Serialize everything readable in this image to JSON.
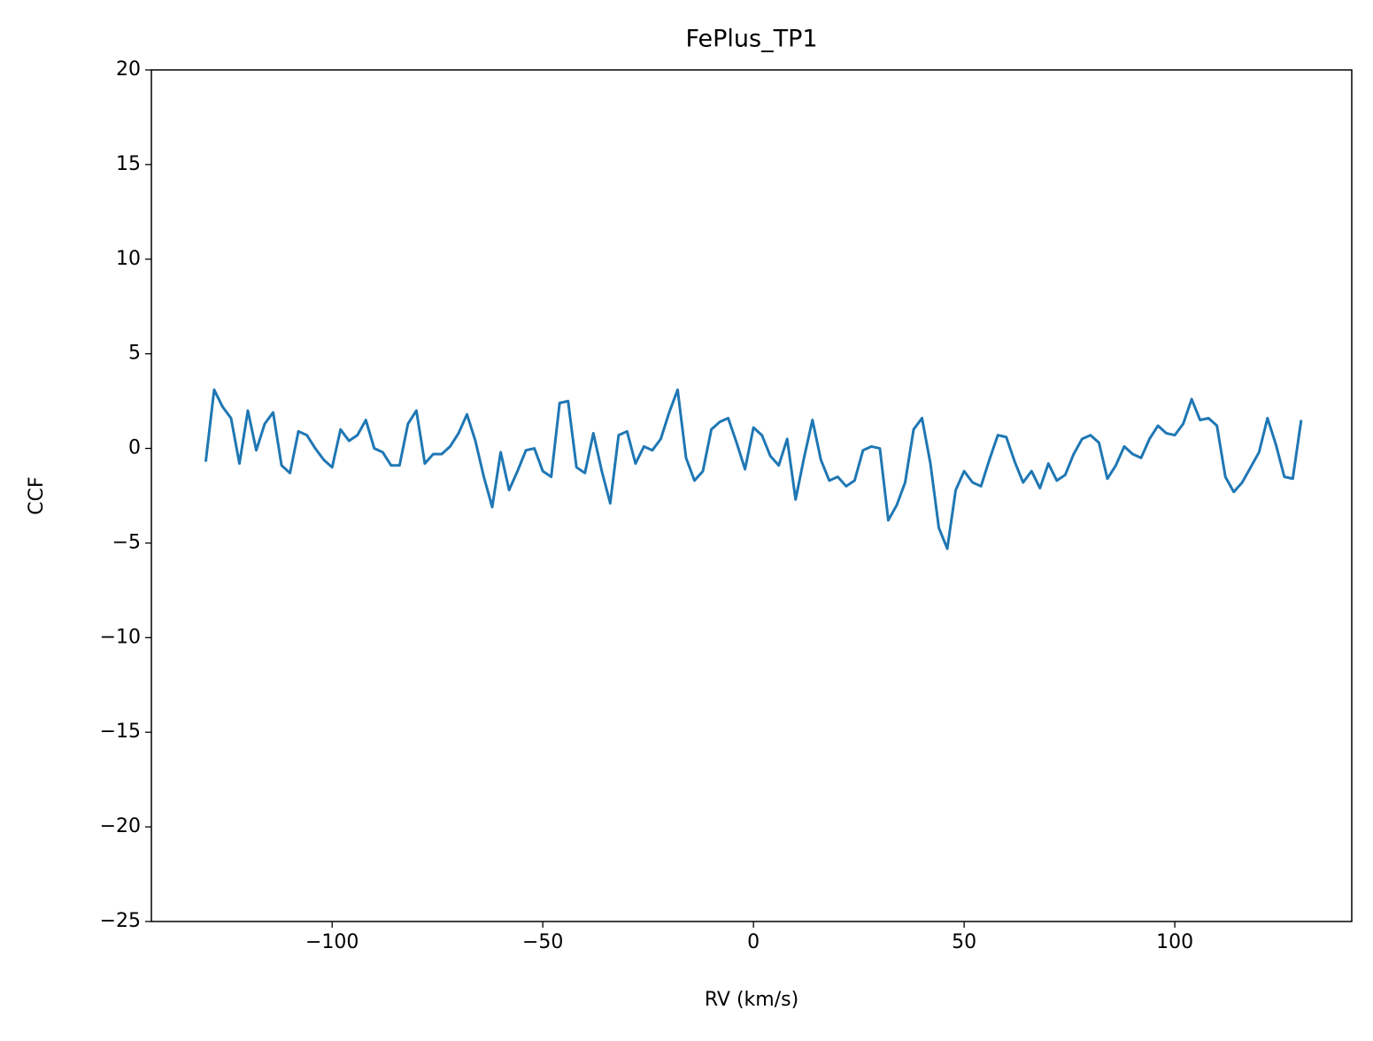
{
  "chart_data": {
    "type": "line",
    "title": "FePlus_TP1",
    "xlabel": "RV (km/s)",
    "ylabel": "CCF",
    "color": "#1f77b4",
    "x": [
      -130,
      -128,
      -126,
      -124,
      -122,
      -120,
      -118,
      -116,
      -114,
      -112,
      -110,
      -108,
      -106,
      -104,
      -102,
      -100,
      -98,
      -96,
      -94,
      -92,
      -90,
      -88,
      -86,
      -84,
      -82,
      -80,
      -78,
      -76,
      -74,
      -72,
      -70,
      -68,
      -66,
      -64,
      -62,
      -60,
      -58,
      -56,
      -54,
      -52,
      -50,
      -48,
      -46,
      -44,
      -42,
      -40,
      -38,
      -36,
      -34,
      -32,
      -30,
      -28,
      -26,
      -24,
      -22,
      -20,
      -18,
      -16,
      -14,
      -12,
      -10,
      -8,
      -6,
      -4,
      -2,
      0,
      2,
      4,
      6,
      8,
      10,
      12,
      14,
      16,
      18,
      20,
      22,
      24,
      26,
      28,
      30,
      32,
      34,
      36,
      38,
      40,
      42,
      44,
      46,
      48,
      50,
      52,
      54,
      56,
      58,
      60,
      62,
      64,
      66,
      68,
      70,
      72,
      74,
      76,
      78,
      80,
      82,
      84,
      86,
      88,
      90,
      92,
      94,
      96,
      98,
      100,
      102,
      104,
      106,
      108,
      110,
      112,
      114,
      116,
      118,
      120,
      122,
      124,
      126,
      128,
      130
    ],
    "values": [
      -0.7,
      3.1,
      2.2,
      1.6,
      -0.8,
      2.0,
      -0.1,
      1.3,
      1.9,
      -0.9,
      -1.3,
      0.9,
      0.7,
      0.0,
      -0.6,
      -1.0,
      1.0,
      0.4,
      0.7,
      1.5,
      0.0,
      -0.2,
      -0.9,
      -0.9,
      1.3,
      2.0,
      -0.8,
      -0.3,
      -0.3,
      0.1,
      0.8,
      1.8,
      0.4,
      -1.5,
      -3.1,
      -0.2,
      -2.2,
      -1.2,
      -0.1,
      0.0,
      -1.2,
      -1.5,
      2.4,
      2.5,
      -1.0,
      -1.3,
      0.8,
      -1.2,
      -2.9,
      0.7,
      0.9,
      -0.8,
      0.1,
      -0.1,
      0.5,
      1.9,
      3.1,
      -0.5,
      -1.7,
      -1.2,
      1.0,
      1.4,
      1.6,
      0.3,
      -1.1,
      1.1,
      0.7,
      -0.4,
      -0.9,
      0.5,
      -2.7,
      -0.5,
      1.5,
      -0.6,
      -1.7,
      -1.5,
      -2.0,
      -1.7,
      -0.1,
      0.1,
      0.0,
      -3.8,
      -3.0,
      -1.8,
      1.0,
      1.6,
      -0.8,
      -4.2,
      -5.3,
      -2.2,
      -1.2,
      -1.8,
      -2.0,
      -0.6,
      0.7,
      0.6,
      -0.7,
      -1.8,
      -1.2,
      -2.1,
      -0.8,
      -1.7,
      -1.4,
      -0.3,
      0.5,
      0.7,
      0.3,
      -1.6,
      -0.9,
      0.1,
      -0.3,
      -0.5,
      0.5,
      1.2,
      0.8,
      0.7,
      1.3,
      2.6,
      1.5,
      1.6,
      1.2,
      -1.5,
      -2.3,
      -1.8,
      -1.0,
      -0.2,
      1.6,
      0.2,
      -1.5,
      -1.6,
      1.5
    ],
    "xlim": [
      -142.9,
      142.0
    ],
    "ylim": [
      -25,
      20
    ],
    "xticks": [
      {
        "value": -100,
        "label": "−100"
      },
      {
        "value": -50,
        "label": "−50"
      },
      0,
      50,
      100
    ],
    "yticks": [
      {
        "value": -25,
        "label": "−25"
      },
      {
        "value": -20,
        "label": "−20"
      },
      {
        "value": -15,
        "label": "−15"
      },
      {
        "value": -10,
        "label": "−10"
      },
      {
        "value": -5,
        "label": "−5"
      },
      0,
      5,
      10,
      15,
      20
    ]
  }
}
